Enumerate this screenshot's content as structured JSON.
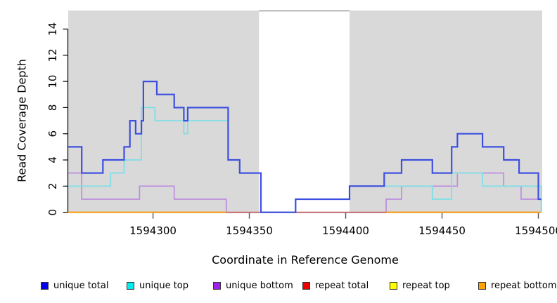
{
  "chart_data": {
    "type": "line",
    "subtype": "step",
    "title": "",
    "xlabel": "Coordinate in Reference Genome",
    "ylabel": "Read Coverage Depth",
    "xlim": [
      1594256,
      1594502
    ],
    "ylim": [
      0,
      15
    ],
    "x_ticks": [
      1594300,
      1594350,
      1594400,
      1594450,
      1594500
    ],
    "y_ticks": [
      0,
      2,
      4,
      6,
      8,
      10,
      12,
      14
    ],
    "grid": false,
    "legend_position": "bottom",
    "panel": {
      "background_color": "#d9d9d9",
      "shaded_regions": [
        [
          1594256,
          1594355
        ],
        [
          1594402,
          1594502
        ]
      ],
      "gap_region": [
        1594355,
        1594402
      ],
      "gap_top_border_color": "#999999"
    },
    "axis_color": "#000000",
    "tick_color": "#555555",
    "series": [
      {
        "name": "unique total",
        "swatch_color": "#0000EE",
        "line_color": "#3D4FE0",
        "lw": 2.2,
        "z": 6,
        "paths": [
          [
            [
              1594256,
              5
            ],
            [
              1594263,
              3
            ],
            [
              1594274,
              4
            ],
            [
              1594285,
              5
            ],
            [
              1594288,
              7
            ],
            [
              1594291,
              6
            ],
            [
              1594294,
              7
            ],
            [
              1594295,
              10
            ],
            [
              1594302,
              9
            ],
            [
              1594311,
              8
            ],
            [
              1594316,
              7
            ],
            [
              1594318,
              8
            ],
            [
              1594339,
              4
            ],
            [
              1594345,
              3
            ],
            [
              1594356,
              0
            ],
            [
              1594374,
              1
            ],
            [
              1594402,
              2
            ],
            [
              1594420,
              3
            ],
            [
              1594429,
              4
            ],
            [
              1594445,
              3
            ],
            [
              1594455,
              5
            ],
            [
              1594458,
              6
            ],
            [
              1594471,
              5
            ],
            [
              1594482,
              4
            ],
            [
              1594490,
              3
            ],
            [
              1594500,
              1
            ],
            [
              1594501.5,
              1
            ]
          ]
        ]
      },
      {
        "name": "unique top",
        "swatch_color": "#00EEEE",
        "line_color": "#7BDFE6",
        "lw": 1.7,
        "z": 5,
        "paths": [
          [
            [
              1594256,
              2
            ],
            [
              1594278,
              3
            ],
            [
              1594285,
              4
            ],
            [
              1594294,
              8
            ],
            [
              1594301,
              7
            ],
            [
              1594316,
              6
            ],
            [
              1594318,
              7
            ],
            [
              1594339,
              4
            ],
            [
              1594345,
              3
            ],
            [
              1594356,
              0
            ],
            [
              1594374,
              1
            ],
            [
              1594402,
              2
            ],
            [
              1594445,
              1
            ],
            [
              1594455,
              3
            ],
            [
              1594471,
              2
            ],
            [
              1594501.5,
              0
            ]
          ]
        ]
      },
      {
        "name": "unique bottom",
        "swatch_color": "#A020F0",
        "line_color": "#BD8CE0",
        "lw": 1.7,
        "z": 2,
        "paths": [
          [
            [
              1594256,
              3
            ],
            [
              1594263,
              1
            ],
            [
              1594293,
              2
            ],
            [
              1594311,
              1
            ],
            [
              1594338,
              0
            ],
            [
              1594421,
              1
            ],
            [
              1594429,
              2
            ],
            [
              1594458,
              3
            ],
            [
              1594482,
              2
            ],
            [
              1594491,
              1
            ],
            [
              1594501.5,
              1
            ]
          ]
        ]
      },
      {
        "name": "repeat total",
        "swatch_color": "#EE0000",
        "line_color": "#CC5F6D",
        "lw": 1.7,
        "z": 3,
        "paths": [
          [
            [
              1594256,
              0
            ],
            [
              1594501.5,
              0
            ]
          ]
        ]
      },
      {
        "name": "repeat top",
        "swatch_color": "#FFFF00",
        "line_color": "#E8D800",
        "lw": 1.7,
        "z": 1,
        "paths": [
          [
            [
              1594256,
              0
            ],
            [
              1594501.5,
              0
            ]
          ]
        ]
      },
      {
        "name": "repeat bottom",
        "swatch_color": "#FFA500",
        "line_color": "#FF9E14",
        "lw": 2,
        "z": 4,
        "paths": [
          [
            [
              1594256,
              0
            ],
            [
              1594338,
              0
            ]
          ],
          [
            [
              1594421,
              0
            ],
            [
              1594501.5,
              0
            ]
          ]
        ]
      }
    ]
  }
}
